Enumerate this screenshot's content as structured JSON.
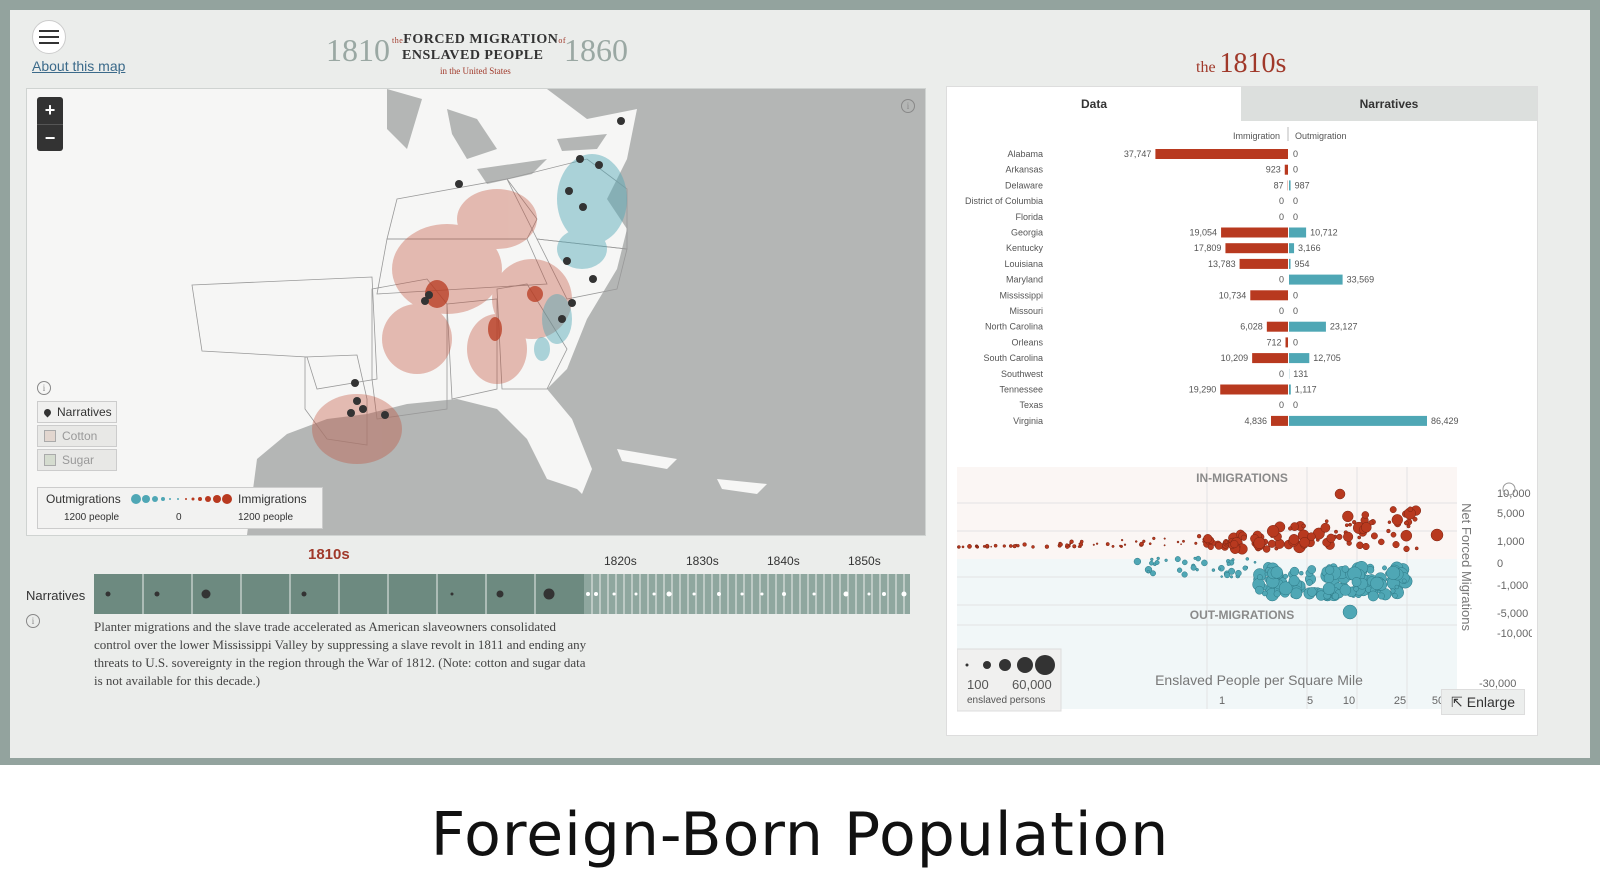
{
  "header": {
    "about_link": "About this map",
    "brand_year_start": "1810",
    "brand_year_end": "1860",
    "brand_the": "the",
    "brand_of": "of",
    "brand_line1": "FORCED MIGRATION",
    "brand_line2": "ENSLAVED PEOPLE",
    "brand_line3": "in the United States"
  },
  "map": {
    "zoom_in": "+",
    "zoom_out": "−",
    "info": "i",
    "layers": [
      {
        "label": "Narratives",
        "active": true
      },
      {
        "label": "Cotton",
        "active": false
      },
      {
        "label": "Sugar",
        "active": false
      }
    ],
    "scale": {
      "out_label": "Outmigrations",
      "in_label": "Immigrations",
      "out_value": "1200 people",
      "zero": "0",
      "in_value": "1200 people"
    },
    "colors": {
      "out": "#4fa7b5",
      "in": "#b8391f"
    }
  },
  "timeline": {
    "active_decade": "1810s",
    "decades": [
      "1820s",
      "1830s",
      "1840s",
      "1850s"
    ],
    "row_label": "Narratives",
    "info": "i",
    "description": "Planter migrations and the slave trade accelerated as American slaveowners consolidated control over the lower Mississippi Valley by suppressing a slave revolt in 1811 and ending any threats to U.S. sovereignty in the region through the War of 1812. (Note: cotton and sugar data is not available for this decade.)"
  },
  "panel": {
    "decade_the": "the",
    "decade": "1810s",
    "tabs": [
      {
        "label": "Data",
        "active": true
      },
      {
        "label": "Narratives",
        "active": false
      }
    ],
    "enlarge": "Enlarge"
  },
  "chart_data": [
    {
      "type": "bar",
      "series_labels": [
        "Immigration",
        "Outmigration"
      ],
      "categories": [
        "Alabama",
        "Arkansas",
        "Delaware",
        "District of Columbia",
        "Florida",
        "Georgia",
        "Kentucky",
        "Louisiana",
        "Maryland",
        "Mississippi",
        "Missouri",
        "North Carolina",
        "Orleans",
        "South Carolina",
        "Southwest",
        "Tennessee",
        "Texas",
        "Virginia"
      ],
      "immigration": [
        37747,
        923,
        87,
        0,
        0,
        19054,
        17809,
        13783,
        0,
        10734,
        0,
        6028,
        712,
        10209,
        0,
        19290,
        0,
        4836
      ],
      "outmigration": [
        0,
        0,
        987,
        0,
        0,
        10712,
        3166,
        954,
        33569,
        0,
        0,
        23127,
        0,
        12705,
        131,
        1117,
        0,
        86429
      ],
      "immigration_labels": [
        "37,747",
        "923",
        "87",
        "0",
        "0",
        "19,054",
        "17,809",
        "13,783",
        "0",
        "10,734",
        "0",
        "6,028",
        "712",
        "10,209",
        "0",
        "19,290",
        "0",
        "4,836"
      ],
      "outmigration_labels": [
        "0",
        "0",
        "987",
        "0",
        "0",
        "10,712",
        "3,166",
        "954",
        "33,569",
        "0",
        "0",
        "23,127",
        "0",
        "12,705",
        "131",
        "1,117",
        "0",
        "86,429"
      ],
      "colors": {
        "immigration": "#b8391f",
        "outmigration": "#4fa7b5"
      }
    },
    {
      "type": "scatter",
      "xlabel": "Enslaved People per Square Mile",
      "ylabel": "Net Forced Migrations",
      "x_ticks": [
        "1",
        "5",
        "10",
        "25",
        "50"
      ],
      "y_ticks": [
        "10,000",
        "5,000",
        "1,000",
        "0",
        "-1,000",
        "-5,000",
        "-10,000",
        "-30,000"
      ],
      "region_labels": [
        "IN-MIGRATIONS",
        "OUT-MIGRATIONS"
      ],
      "size_legend": {
        "min": "100",
        "max": "60,000",
        "unit": "enslaved persons"
      },
      "colors": {
        "in": "#b8391f",
        "out": "#4fa7b5"
      }
    }
  ],
  "caption": "Foreign-Born Population"
}
